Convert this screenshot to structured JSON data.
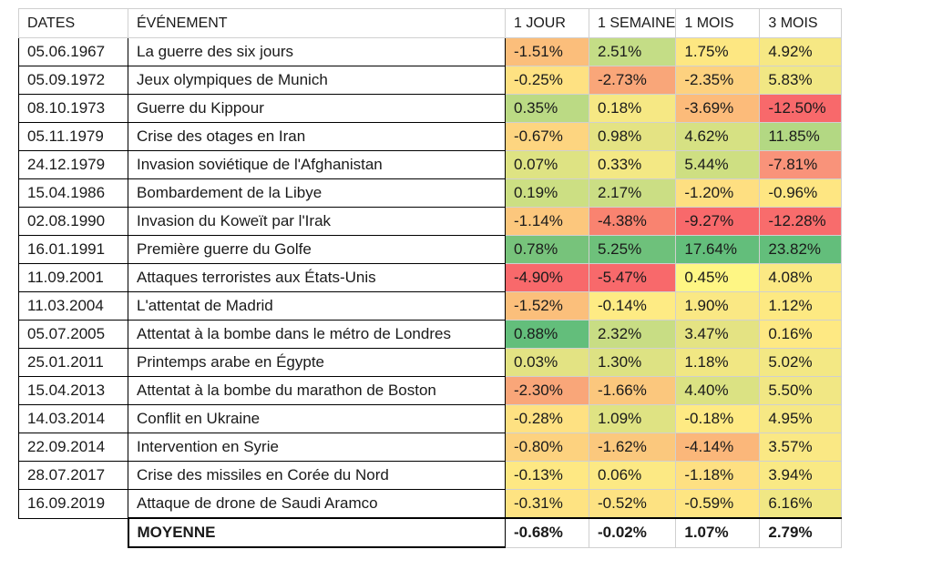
{
  "headers": [
    "DATES",
    "ÉVÉNEMENT",
    "1 JOUR",
    "1 SEMAINE",
    "1 MOIS",
    "3 MOIS"
  ],
  "rows": [
    {
      "date": "05.06.1967",
      "event": "La guerre des six jours",
      "v": [
        "-1.51%",
        "2.51%",
        "1.75%",
        "4.92%"
      ],
      "c": [
        "#fbbe7b",
        "#c4dd86",
        "#fde782",
        "#f6e884"
      ]
    },
    {
      "date": "05.09.1972",
      "event": "Jeux olympiques de Munich",
      "v": [
        "-0.25%",
        "-2.73%",
        "-2.35%",
        "5.83%"
      ],
      "c": [
        "#fee182",
        "#f9a679",
        "#fdd17f",
        "#f1e784"
      ]
    },
    {
      "date": "08.10.1973",
      "event": "Guerre du Kippour",
      "v": [
        "0.35%",
        "0.18%",
        "-3.69%",
        "-12.50%"
      ],
      "c": [
        "#bbda84",
        "#f6e884",
        "#fcbb7a",
        "#f8696b"
      ]
    },
    {
      "date": "05.11.1979",
      "event": "Crise des otages en Iran",
      "v": [
        "-0.67%",
        "0.98%",
        "4.62%",
        "11.85%"
      ],
      "c": [
        "#fdd580",
        "#e4e383",
        "#d6e183",
        "#b3d883"
      ]
    },
    {
      "date": "24.12.1979",
      "event": "Invasion soviétique de l'Afghanistan",
      "v": [
        "0.07%",
        "0.33%",
        "5.44%",
        "-7.81%"
      ],
      "c": [
        "#dee383",
        "#f3e884",
        "#cedf82",
        "#f9937a"
      ]
    },
    {
      "date": "15.04.1986",
      "event": "Bombardement de la Libye",
      "v": [
        "0.19%",
        "2.17%",
        "-1.20%",
        "-0.96%"
      ],
      "c": [
        "#ccdf83",
        "#cbde84",
        "#fedf81",
        "#fee682"
      ]
    },
    {
      "date": "02.08.1990",
      "event": "Invasion du Koweït par l'Irak",
      "v": [
        "-1.14%",
        "-4.38%",
        "-9.27%",
        "-12.28%"
      ],
      "c": [
        "#fcc77d",
        "#f98370",
        "#f8696b",
        "#f86c6c"
      ]
    },
    {
      "date": "16.01.1991",
      "event": "Première guerre du Golfe",
      "v": [
        "0.78%",
        "5.25%",
        "17.64%",
        "23.82%"
      ],
      "c": [
        "#77c37b",
        "#6ec17b",
        "#63be7b",
        "#63be7b"
      ]
    },
    {
      "date": "11.09.2001",
      "event": "Attaques terroristes aux États-Unis",
      "v": [
        "-4.90%",
        "-5.47%",
        "0.45%",
        "4.08%"
      ],
      "c": [
        "#f8696b",
        "#f8696b",
        "#fef684",
        "#fbe984"
      ]
    },
    {
      "date": "11.03.2004",
      "event": "L'attentat de Madrid",
      "v": [
        "-1.52%",
        "-0.14%",
        "1.90%",
        "1.12%"
      ],
      "c": [
        "#fbbf7b",
        "#feeb84",
        "#fae884",
        "#fde982"
      ]
    },
    {
      "date": "05.07.2005",
      "event": "Attentat à la bombe dans le métro de Londres",
      "v": [
        "0.88%",
        "2.32%",
        "3.47%",
        "0.16%"
      ],
      "c": [
        "#63be7b",
        "#c8dd84",
        "#e4e383",
        "#fee983"
      ]
    },
    {
      "date": "25.01.2011",
      "event": "Printemps arabe en Égypte",
      "v": [
        "0.03%",
        "1.30%",
        "1.18%",
        "5.02%"
      ],
      "c": [
        "#e3e383",
        "#dde283",
        "#f1e783",
        "#f3e884"
      ]
    },
    {
      "date": "15.04.2013",
      "event": "Attentat à la bombe du marathon de Boston",
      "v": [
        "-2.30%",
        "-1.66%",
        "4.40%",
        "5.50%"
      ],
      "c": [
        "#f9a679",
        "#fbc77d",
        "#dbe283",
        "#f1e784"
      ]
    },
    {
      "date": "14.03.2014",
      "event": "Conflit en Ukraine",
      "v": [
        "-0.28%",
        "1.09%",
        "-0.18%",
        "4.95%"
      ],
      "c": [
        "#fee182",
        "#dfe383",
        "#feea83",
        "#f6e884"
      ]
    },
    {
      "date": "22.09.2014",
      "event": "Intervention en Syrie",
      "v": [
        "-0.80%",
        "-1.62%",
        "-4.14%",
        "3.57%"
      ],
      "c": [
        "#fdd27f",
        "#fbc87d",
        "#fbb77a",
        "#fae884"
      ]
    },
    {
      "date": "28.07.2017",
      "event": "Crise des missiles en Corée du Nord",
      "v": [
        "-0.13%",
        "0.06%",
        "-1.18%",
        "3.94%"
      ],
      "c": [
        "#fee883",
        "#fce984",
        "#fee082",
        "#f9e984"
      ]
    },
    {
      "date": "16.09.2019",
      "event": "Attaque de drone de Saudi Aramco",
      "v": [
        "-0.31%",
        "-0.52%",
        "-0.59%",
        "6.16%"
      ],
      "c": [
        "#fee382",
        "#fde282",
        "#fee582",
        "#f0e784"
      ]
    }
  ],
  "footer": {
    "label": "MOYENNE",
    "v": [
      "-0.68%",
      "-0.02%",
      "1.07%",
      "2.79%"
    ]
  }
}
